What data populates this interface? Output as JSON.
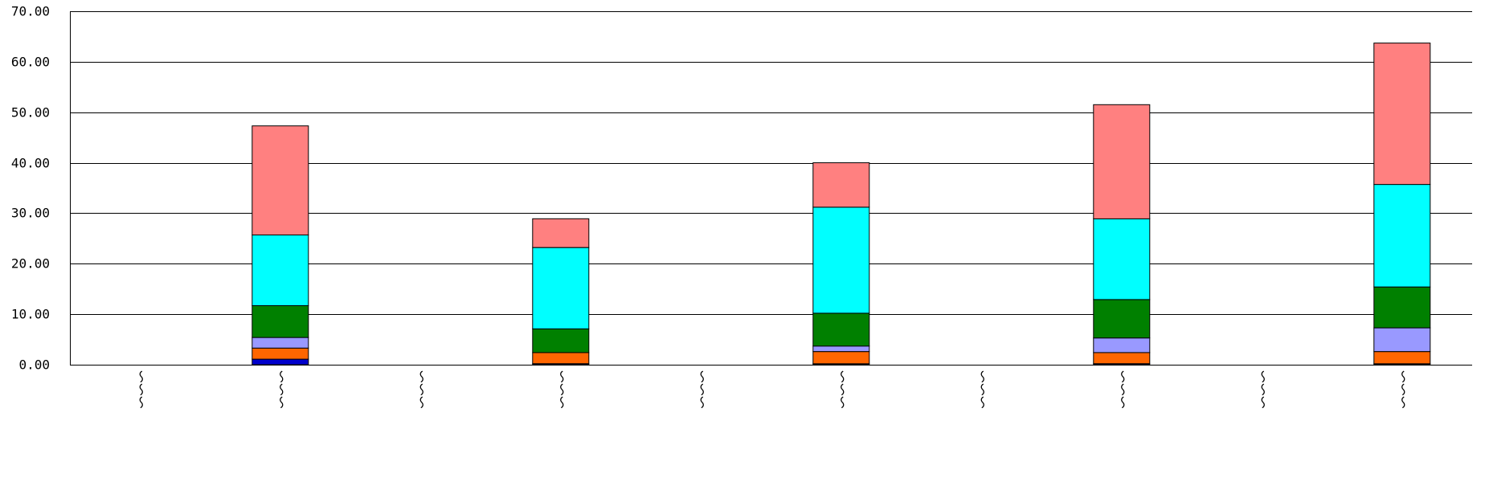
{
  "chart_data": {
    "type": "bar",
    "stacked": true,
    "grid": true,
    "ylim": [
      0,
      70
    ],
    "yticks": [
      "0.00",
      "10.00",
      "20.00",
      "30.00",
      "40.00",
      "50.00",
      "60.00",
      "70.00"
    ],
    "categories": [
      "〜〜〜",
      "〜〜〜",
      "〜〜〜",
      "〜〜〜",
      "〜〜〜",
      "〜〜〜",
      "〜〜〜",
      "〜〜〜",
      "〜〜〜",
      "〜〜〜"
    ],
    "series": [
      {
        "color": "#0000cc",
        "values": [
          0,
          1.1,
          0,
          0.2,
          0,
          0.2,
          0,
          0.2,
          0,
          0.2
        ]
      },
      {
        "color": "#ff6600",
        "values": [
          0,
          2.2,
          0,
          2.2,
          0,
          2.4,
          0,
          2.2,
          0,
          2.4
        ]
      },
      {
        "color": "#9999ff",
        "values": [
          0,
          2.1,
          0,
          0,
          0,
          1.1,
          0,
          2.9,
          0,
          4.7
        ]
      },
      {
        "color": "#008000",
        "values": [
          0,
          6.3,
          0,
          4.7,
          0,
          6.5,
          0,
          7.6,
          0,
          8.1
        ]
      },
      {
        "color": "#00ffff",
        "values": [
          0,
          14.0,
          0,
          16.1,
          0,
          21.0,
          0,
          16.0,
          0,
          20.3
        ]
      },
      {
        "color": "#ff8080",
        "values": [
          0,
          21.6,
          0,
          5.7,
          0,
          8.8,
          0,
          22.6,
          0,
          28.0
        ]
      }
    ]
  }
}
